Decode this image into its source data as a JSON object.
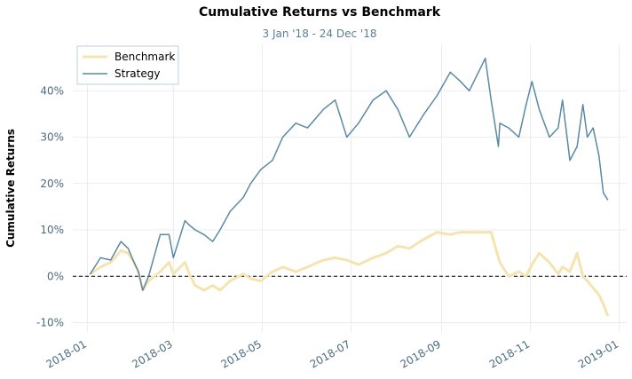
{
  "chart_data": {
    "type": "line",
    "title": "Cumulative Returns vs Benchmark",
    "subtitle": "3 Jan '18 - 24 Dec '18",
    "ylabel": "Cumulative Returns",
    "xlabel": "",
    "ylim": [
      -12,
      50
    ],
    "y_ticks": [
      -10,
      0,
      10,
      20,
      30,
      40
    ],
    "y_tick_labels": [
      "-10%",
      "0%",
      "10%",
      "20%",
      "30%",
      "40%"
    ],
    "x_range": [
      "2017-12-22",
      "2019-01-06"
    ],
    "x_ticks": [
      "2018-01-01",
      "2018-03-01",
      "2018-05-01",
      "2018-07-01",
      "2018-09-01",
      "2018-11-01",
      "2019-01-01"
    ],
    "x_tick_labels": [
      "2018-01",
      "2018-03",
      "2018-05",
      "2018-07",
      "2018-09",
      "2018-11",
      "2019-01"
    ],
    "grid": true,
    "zero_line": true,
    "legend": {
      "position": "top-left",
      "entries": [
        "Benchmark",
        "Strategy"
      ]
    },
    "series": [
      {
        "name": "Benchmark",
        "color": "#f5e4b0",
        "x": [
          "2018-01-03",
          "2018-01-10",
          "2018-01-17",
          "2018-01-24",
          "2018-01-29",
          "2018-02-02",
          "2018-02-05",
          "2018-02-08",
          "2018-02-12",
          "2018-02-20",
          "2018-02-26",
          "2018-03-01",
          "2018-03-09",
          "2018-03-12",
          "2018-03-16",
          "2018-03-22",
          "2018-03-28",
          "2018-04-02",
          "2018-04-09",
          "2018-04-18",
          "2018-04-23",
          "2018-04-30",
          "2018-05-08",
          "2018-05-15",
          "2018-05-24",
          "2018-06-01",
          "2018-06-12",
          "2018-06-20",
          "2018-06-28",
          "2018-07-06",
          "2018-07-16",
          "2018-07-25",
          "2018-08-02",
          "2018-08-10",
          "2018-08-20",
          "2018-08-29",
          "2018-09-07",
          "2018-09-14",
          "2018-09-20",
          "2018-10-01",
          "2018-10-05",
          "2018-10-10",
          "2018-10-11",
          "2018-10-17",
          "2018-10-24",
          "2018-10-29",
          "2018-11-02",
          "2018-11-07",
          "2018-11-14",
          "2018-11-20",
          "2018-11-23",
          "2018-11-28",
          "2018-12-03",
          "2018-12-07",
          "2018-12-10",
          "2018-12-14",
          "2018-12-18",
          "2018-12-21",
          "2018-12-24"
        ],
        "values": [
          0.5,
          2,
          3,
          5.5,
          5,
          3,
          1,
          -3,
          -1,
          1,
          3,
          0.5,
          3,
          0.5,
          -2,
          -3,
          -2,
          -3,
          -1,
          0.5,
          -0.5,
          -1,
          1,
          2,
          1,
          2,
          3.5,
          4,
          3.5,
          2.5,
          4,
          5,
          6.5,
          6,
          8,
          9.5,
          9,
          9.5,
          9.5,
          9.5,
          9.5,
          4,
          3,
          0,
          1,
          0,
          2.5,
          5,
          3,
          0.5,
          2,
          1,
          5,
          0,
          -1,
          -2.5,
          -4,
          -6,
          -8.5
        ]
      },
      {
        "name": "Strategy",
        "color": "#5a8aa3",
        "x": [
          "2018-01-03",
          "2018-01-10",
          "2018-01-17",
          "2018-01-24",
          "2018-01-29",
          "2018-02-02",
          "2018-02-05",
          "2018-02-08",
          "2018-02-12",
          "2018-02-20",
          "2018-02-26",
          "2018-03-01",
          "2018-03-09",
          "2018-03-12",
          "2018-03-16",
          "2018-03-22",
          "2018-03-28",
          "2018-04-02",
          "2018-04-09",
          "2018-04-18",
          "2018-04-23",
          "2018-04-30",
          "2018-05-08",
          "2018-05-15",
          "2018-05-24",
          "2018-06-01",
          "2018-06-12",
          "2018-06-20",
          "2018-06-28",
          "2018-07-06",
          "2018-07-16",
          "2018-07-25",
          "2018-08-02",
          "2018-08-10",
          "2018-08-20",
          "2018-08-29",
          "2018-09-07",
          "2018-09-14",
          "2018-09-20",
          "2018-10-01",
          "2018-10-05",
          "2018-10-10",
          "2018-10-11",
          "2018-10-17",
          "2018-10-24",
          "2018-10-29",
          "2018-11-02",
          "2018-11-07",
          "2018-11-14",
          "2018-11-20",
          "2018-11-23",
          "2018-11-28",
          "2018-12-03",
          "2018-12-07",
          "2018-12-10",
          "2018-12-14",
          "2018-12-18",
          "2018-12-21",
          "2018-12-24"
        ],
        "values": [
          0.5,
          4,
          3.5,
          7.5,
          6,
          3,
          1,
          -3,
          0,
          9,
          9,
          4,
          12,
          11,
          10,
          9,
          7.5,
          10,
          14,
          17,
          20,
          23,
          25,
          30,
          33,
          32,
          36,
          38,
          30,
          33,
          38,
          40,
          36,
          30,
          35,
          39,
          44,
          42,
          40,
          47,
          38,
          28,
          33,
          32,
          30,
          37,
          42,
          36,
          30,
          32,
          38,
          25,
          28,
          37,
          30,
          32,
          26,
          18,
          16.5
        ]
      }
    ]
  }
}
